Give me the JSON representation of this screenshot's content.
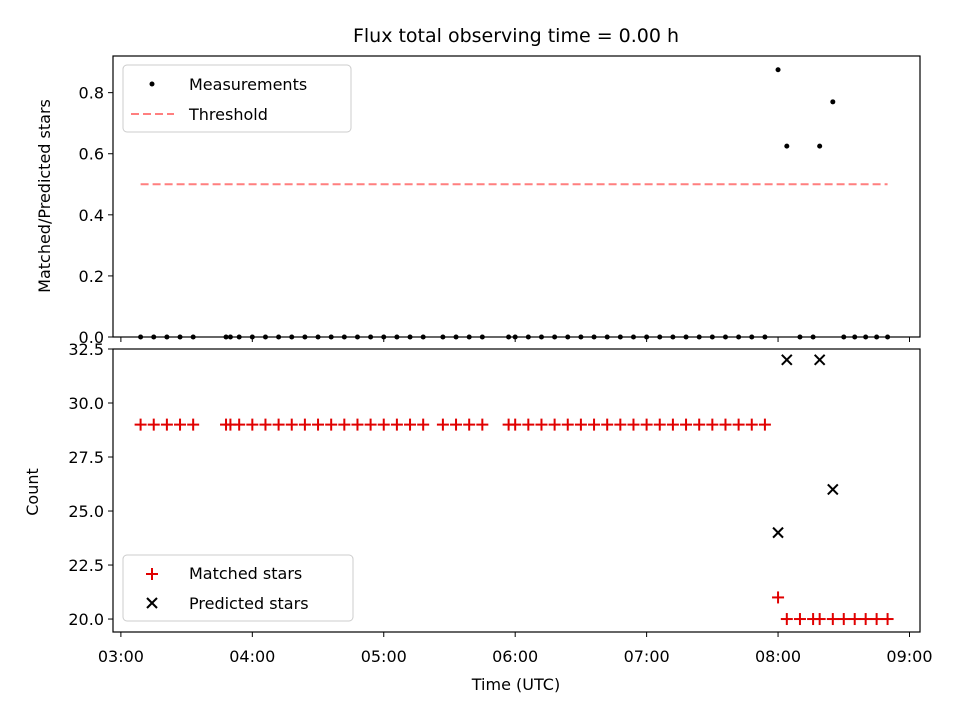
{
  "chart_data": {
    "title": "Flux total observing time = 0.00 h",
    "x_axis": {
      "label": "Time (UTC)",
      "ticks": [
        "03:00",
        "04:00",
        "05:00",
        "06:00",
        "07:00",
        "08:00",
        "09:00"
      ],
      "range_hours": [
        2.94,
        9.08
      ]
    },
    "top": {
      "type": "scatter",
      "ylabel": "Matched/Predicted stars",
      "ylim": [
        0,
        0.92
      ],
      "yticks": [
        "0.0",
        "0.2",
        "0.4",
        "0.6",
        "0.8"
      ],
      "legend": {
        "placement": "upper-left",
        "entries": [
          "Measurements",
          "Threshold"
        ]
      },
      "threshold": {
        "name": "Threshold",
        "value": 0.5,
        "x_range": [
          "03:09",
          "08:50"
        ],
        "color": "#ff7f7f"
      },
      "measurements": {
        "name": "Measurements",
        "color": "#000000",
        "points": [
          [
            "03:09",
            0.0
          ],
          [
            "03:15",
            0.0
          ],
          [
            "03:21",
            0.0
          ],
          [
            "03:27",
            0.0
          ],
          [
            "03:33",
            0.0
          ],
          [
            "03:48",
            0.0
          ],
          [
            "03:50",
            0.0
          ],
          [
            "03:54",
            0.0
          ],
          [
            "04:00",
            0.0
          ],
          [
            "04:06",
            0.0
          ],
          [
            "04:12",
            0.0
          ],
          [
            "04:18",
            0.0
          ],
          [
            "04:24",
            0.0
          ],
          [
            "04:30",
            0.0
          ],
          [
            "04:36",
            0.0
          ],
          [
            "04:42",
            0.0
          ],
          [
            "04:48",
            0.0
          ],
          [
            "04:54",
            0.0
          ],
          [
            "05:00",
            0.0
          ],
          [
            "05:06",
            0.0
          ],
          [
            "05:12",
            0.0
          ],
          [
            "05:18",
            0.0
          ],
          [
            "05:27",
            0.0
          ],
          [
            "05:33",
            0.0
          ],
          [
            "05:39",
            0.0
          ],
          [
            "05:45",
            0.0
          ],
          [
            "05:57",
            0.0
          ],
          [
            "06:00",
            0.0
          ],
          [
            "06:06",
            0.0
          ],
          [
            "06:12",
            0.0
          ],
          [
            "06:18",
            0.0
          ],
          [
            "06:24",
            0.0
          ],
          [
            "06:30",
            0.0
          ],
          [
            "06:36",
            0.0
          ],
          [
            "06:42",
            0.0
          ],
          [
            "06:48",
            0.0
          ],
          [
            "06:54",
            0.0
          ],
          [
            "07:00",
            0.0
          ],
          [
            "07:06",
            0.0
          ],
          [
            "07:12",
            0.0
          ],
          [
            "07:18",
            0.0
          ],
          [
            "07:24",
            0.0
          ],
          [
            "07:30",
            0.0
          ],
          [
            "07:36",
            0.0
          ],
          [
            "07:42",
            0.0
          ],
          [
            "07:48",
            0.0
          ],
          [
            "07:54",
            0.0
          ],
          [
            "08:00",
            0.875
          ],
          [
            "08:04",
            0.625
          ],
          [
            "08:10",
            0.0
          ],
          [
            "08:16",
            0.0
          ],
          [
            "08:19",
            0.625
          ],
          [
            "08:25",
            0.77
          ],
          [
            "08:30",
            0.0
          ],
          [
            "08:35",
            0.0
          ],
          [
            "08:40",
            0.0
          ],
          [
            "08:45",
            0.0
          ],
          [
            "08:50",
            0.0
          ]
        ]
      }
    },
    "bottom": {
      "type": "scatter",
      "ylabel": "Count",
      "ylim": [
        19.4,
        32.5
      ],
      "yticks": [
        "20.0",
        "22.5",
        "25.0",
        "27.5",
        "30.0",
        "32.5"
      ],
      "legend": {
        "placement": "lower-left",
        "entries": [
          "Matched stars",
          "Predicted stars"
        ]
      },
      "matched": {
        "name": "Matched stars",
        "marker": "plus",
        "color": "#e00000",
        "points": [
          [
            "03:09",
            29
          ],
          [
            "03:15",
            29
          ],
          [
            "03:21",
            29
          ],
          [
            "03:27",
            29
          ],
          [
            "03:33",
            29
          ],
          [
            "03:48",
            29
          ],
          [
            "03:50",
            29
          ],
          [
            "03:54",
            29
          ],
          [
            "04:00",
            29
          ],
          [
            "04:06",
            29
          ],
          [
            "04:12",
            29
          ],
          [
            "04:18",
            29
          ],
          [
            "04:24",
            29
          ],
          [
            "04:30",
            29
          ],
          [
            "04:36",
            29
          ],
          [
            "04:42",
            29
          ],
          [
            "04:48",
            29
          ],
          [
            "04:54",
            29
          ],
          [
            "05:00",
            29
          ],
          [
            "05:06",
            29
          ],
          [
            "05:12",
            29
          ],
          [
            "05:18",
            29
          ],
          [
            "05:27",
            29
          ],
          [
            "05:33",
            29
          ],
          [
            "05:39",
            29
          ],
          [
            "05:45",
            29
          ],
          [
            "05:57",
            29
          ],
          [
            "06:00",
            29
          ],
          [
            "06:06",
            29
          ],
          [
            "06:12",
            29
          ],
          [
            "06:18",
            29
          ],
          [
            "06:24",
            29
          ],
          [
            "06:30",
            29
          ],
          [
            "06:36",
            29
          ],
          [
            "06:42",
            29
          ],
          [
            "06:48",
            29
          ],
          [
            "06:54",
            29
          ],
          [
            "07:00",
            29
          ],
          [
            "07:06",
            29
          ],
          [
            "07:12",
            29
          ],
          [
            "07:18",
            29
          ],
          [
            "07:24",
            29
          ],
          [
            "07:30",
            29
          ],
          [
            "07:36",
            29
          ],
          [
            "07:42",
            29
          ],
          [
            "07:48",
            29
          ],
          [
            "07:54",
            29
          ],
          [
            "08:00",
            21
          ],
          [
            "08:04",
            20
          ],
          [
            "08:10",
            20
          ],
          [
            "08:16",
            20
          ],
          [
            "08:19",
            20
          ],
          [
            "08:25",
            20
          ],
          [
            "08:30",
            20
          ],
          [
            "08:35",
            20
          ],
          [
            "08:40",
            20
          ],
          [
            "08:45",
            20
          ],
          [
            "08:50",
            20
          ]
        ]
      },
      "predicted": {
        "name": "Predicted stars",
        "marker": "x",
        "color": "#000000",
        "points": [
          [
            "08:00",
            24
          ],
          [
            "08:04",
            32
          ],
          [
            "08:19",
            32
          ],
          [
            "08:25",
            26
          ]
        ]
      }
    }
  }
}
